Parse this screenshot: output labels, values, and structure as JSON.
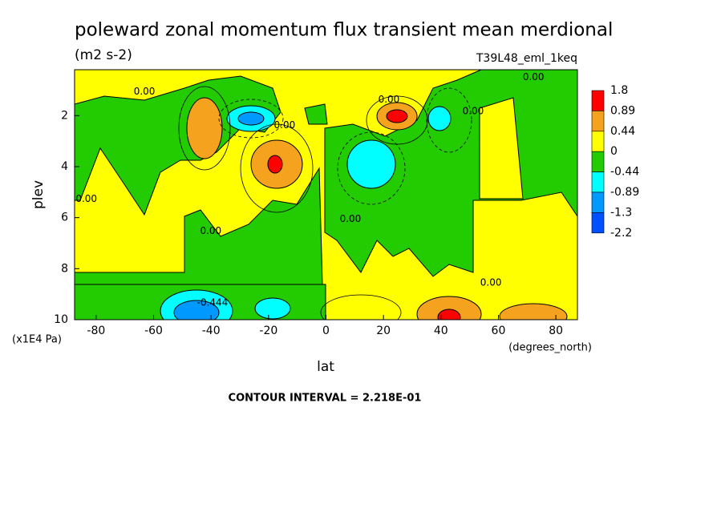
{
  "chart_data": {
    "type": "contour",
    "title": "poleward zonal momentum flux transient mean merdional",
    "units": "(m2 s-2)",
    "dataset": "T39L48_eml_1keq",
    "x_label": "lat",
    "x_units": "(degrees_north)",
    "y_label": "plev",
    "y_units": "(x1E4 Pa)",
    "xlim": [
      -87.5,
      87.5
    ],
    "xticks": [
      -80,
      -60,
      -40,
      -20,
      0,
      20,
      40,
      60,
      80
    ],
    "ylim": [
      0.2,
      10
    ],
    "y_reversed": true,
    "yticks": [
      2,
      4,
      6,
      8,
      10
    ],
    "levels": [
      1.8,
      0.89,
      0.44,
      0,
      -0.44,
      -0.89,
      -1.3,
      -2.2
    ],
    "level_colors": [
      "#ff0000",
      "#f5a21e",
      "#ffff00",
      "#22cc00",
      "#00ffff",
      "#0099ff",
      "#0050ff"
    ],
    "contour_labels": [
      {
        "label": "0.00",
        "x": -63.2,
        "y": 1.06
      },
      {
        "label": "0.00",
        "x": -14.4,
        "y": 2.38
      },
      {
        "label": "0.00",
        "x": 21.9,
        "y": 1.38
      },
      {
        "label": "0.00",
        "x": 51.2,
        "y": 1.84
      },
      {
        "label": "0.00",
        "x": 72.2,
        "y": 0.5
      },
      {
        "label": "0.00",
        "x": -83.4,
        "y": 5.28
      },
      {
        "label": "0.00",
        "x": -40.1,
        "y": 6.53
      },
      {
        "label": "0.00",
        "x": 8.5,
        "y": 6.06
      },
      {
        "label": "0.00",
        "x": 57.4,
        "y": 8.56
      },
      {
        "label": "-0.444",
        "x": -39.5,
        "y": 9.34
      }
    ],
    "footer": "CONTOUR INTERVAL = 2.218E-01"
  }
}
